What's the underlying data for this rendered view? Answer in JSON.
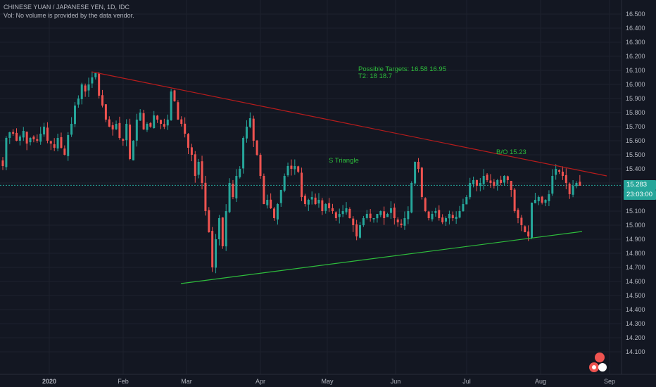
{
  "header": {
    "symbol_line": "CHINESE YUAN / JAPANESE YEN, 1D, IDC",
    "volume_line": "Vol: No volume is provided by the data vendor."
  },
  "price_badge": "15.283",
  "timer_badge": "23:03:00",
  "annotations": {
    "targets_line1": "Possible Targets: 16.58  16.95",
    "targets_line2": "T2:  18  18.7",
    "triangle_label": "S Triangle",
    "breakout_label": "B/O  15.23"
  },
  "colors": {
    "background": "#131722",
    "up": "#26a69a",
    "down": "#ef5350",
    "upper_trendline": "#b71c1c",
    "lower_trendline": "#2ebd3c",
    "annotation_text": "#2ebd3c",
    "grid": "#1e222d",
    "axis_text": "#b2b5be"
  },
  "chart_data": {
    "type": "candlestick",
    "x_tick_labels": [
      "2020",
      "Feb",
      "Mar",
      "Apr",
      "May",
      "Jun",
      "Jul",
      "Aug",
      "Sep"
    ],
    "y_tick_labels": [
      "14.100",
      "14.200",
      "14.300",
      "14.400",
      "14.500",
      "14.600",
      "14.700",
      "14.800",
      "14.900",
      "15.000",
      "15.100",
      "15.200",
      "15.300",
      "15.400",
      "15.500",
      "15.600",
      "15.700",
      "15.800",
      "15.900",
      "16.000",
      "16.100",
      "16.200",
      "16.300",
      "16.400",
      "16.500"
    ],
    "ylim": [
      14.05,
      16.55
    ],
    "last_price": 15.283,
    "grid": true,
    "series": [
      {
        "closes": [
          15.42,
          15.62,
          15.66,
          15.65,
          15.6,
          15.63,
          15.67,
          15.58,
          15.62,
          15.61,
          15.6,
          15.65,
          15.7,
          15.6,
          15.58,
          15.55,
          15.62,
          15.55,
          15.5,
          15.64,
          15.72,
          15.85,
          15.9,
          16.0,
          15.95,
          16.0,
          16.05,
          16.08,
          15.92,
          15.85,
          15.75,
          15.7,
          15.68,
          15.72,
          15.62,
          15.6,
          15.72,
          15.47,
          15.6,
          15.75,
          15.8,
          15.68,
          15.72,
          15.7,
          15.78,
          15.75,
          15.72,
          15.7,
          15.75,
          15.95,
          15.88,
          15.75,
          15.72,
          15.65,
          15.55,
          15.5,
          15.35,
          15.45,
          15.3,
          15.1,
          14.95,
          14.7,
          14.9,
          15.05,
          14.85,
          15.1,
          15.3,
          15.2,
          15.35,
          15.4,
          15.62,
          15.7,
          15.76,
          15.6,
          15.5,
          15.35,
          15.15,
          15.18,
          15.12,
          15.05,
          15.15,
          15.25,
          15.35,
          15.42,
          15.4,
          15.42,
          15.38,
          15.2,
          15.15,
          15.18,
          15.2,
          15.15,
          15.18,
          15.1,
          15.15,
          15.12,
          15.1,
          15.05,
          15.08,
          15.1,
          15.12,
          15.05,
          15.0,
          14.92,
          15.0,
          15.05,
          15.08,
          15.05,
          15.05,
          15.08,
          15.1,
          15.05,
          15.08,
          15.12,
          15.05,
          15.02,
          15.0,
          15.05,
          15.1,
          15.3,
          15.45,
          15.4,
          15.2,
          15.1,
          15.05,
          15.08,
          15.1,
          15.05,
          15.02,
          15.05,
          15.08,
          15.05,
          15.06,
          15.1,
          15.15,
          15.2,
          15.3,
          15.32,
          15.28,
          15.3,
          15.35,
          15.32,
          15.3,
          15.28,
          15.32,
          15.3,
          15.35,
          15.32,
          15.25,
          15.1,
          15.05,
          15.0,
          14.95,
          14.92,
          15.16,
          15.18,
          15.2,
          15.16,
          15.18,
          15.22,
          15.35,
          15.4,
          15.38,
          15.35,
          15.3,
          15.22,
          15.28,
          15.3,
          15.28
        ]
      }
    ]
  }
}
